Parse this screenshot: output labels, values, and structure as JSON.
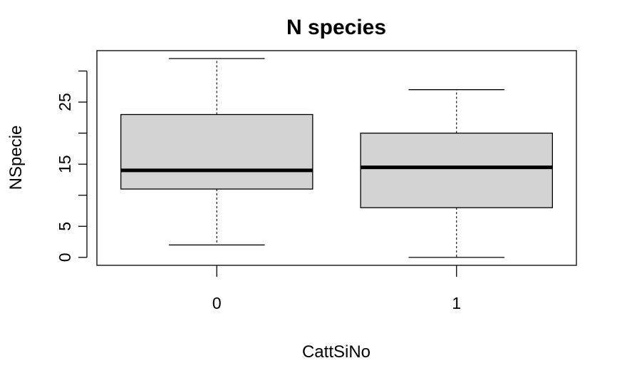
{
  "chart_data": {
    "type": "boxplot",
    "title": "N species",
    "xlabel": "CattSiNo",
    "ylabel": "NSpecie",
    "categories": [
      "0",
      "1"
    ],
    "boxes": [
      {
        "category": "0",
        "whisker_low": 2,
        "q1": 11,
        "median": 14,
        "q3": 23,
        "whisker_high": 32
      },
      {
        "category": "1",
        "whisker_low": 0,
        "q1": 8,
        "median": 14.5,
        "q3": 20,
        "whisker_high": 27
      }
    ],
    "yticks": [
      0,
      5,
      15,
      25
    ],
    "ytick_marks": [
      0,
      5,
      10,
      15,
      20,
      25,
      30
    ],
    "ylim": [
      -1.28,
      33.28
    ],
    "box_color": "#d3d3d3",
    "grid": false,
    "legend": "none"
  }
}
